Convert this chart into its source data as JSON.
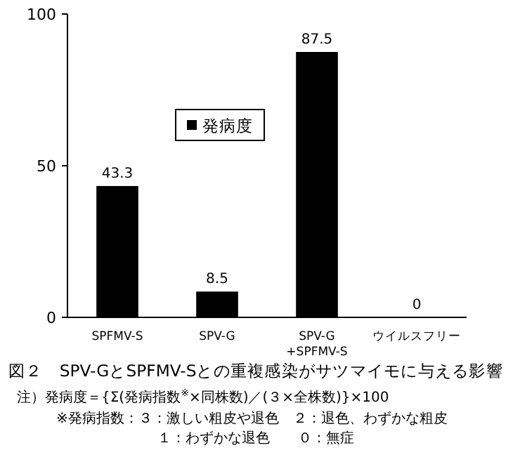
{
  "chart_data": {
    "type": "bar",
    "title": "図２　SPV-GとSPFMV-Sとの重複感染がサツマイモに与える影響",
    "categories": [
      "SPFMV-S",
      "SPV-G",
      "SPV-G\n+SPFMV-S",
      "ウイルスフリー"
    ],
    "series": [
      {
        "name": "発病度",
        "color": "#000000",
        "values": [
          43.3,
          8.5,
          87.5,
          0
        ]
      }
    ],
    "ylim": [
      0,
      100
    ],
    "yticks": [
      0,
      50,
      100
    ],
    "data_labels": true,
    "legend": "top left",
    "annotations": [
      "注）発病度＝{Σ(発病指数$^{※}$×同株数)／(３×全株数)}×100",
      "※発病指数：３：激しい粗皮や退色　２：退色、わずかな粗皮",
      "１：わずかな退色　　０：無症"
    ]
  }
}
